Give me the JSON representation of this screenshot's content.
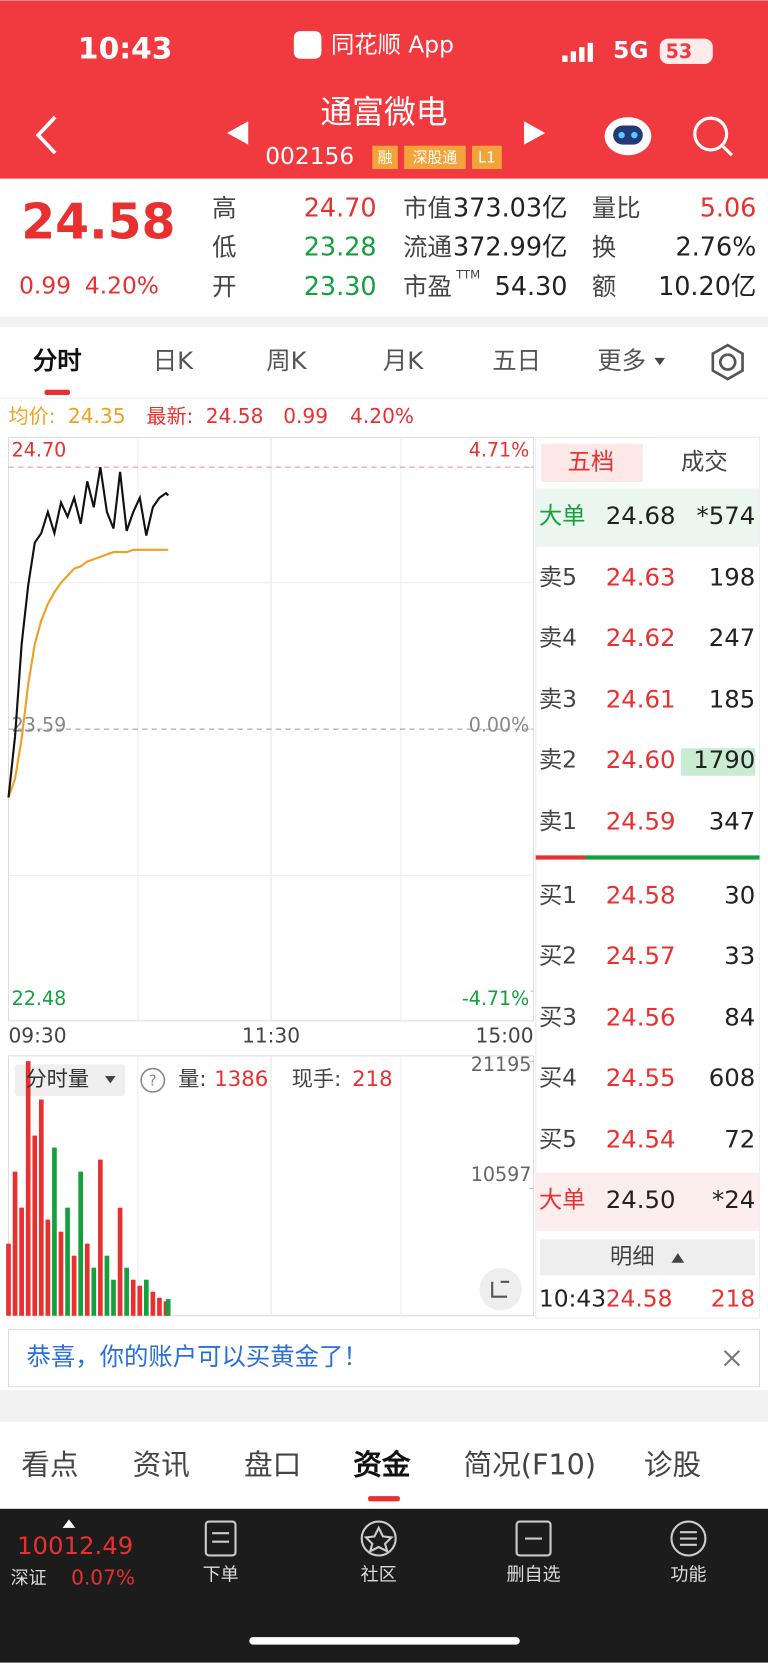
{
  "status": {
    "time": "10:43",
    "app": "同花顺 App",
    "network": "5G",
    "battery": "53"
  },
  "header": {
    "name": "通富微电",
    "code": "002156",
    "tags": [
      "融",
      "深股通",
      "L1"
    ]
  },
  "quote": {
    "price": "24.58",
    "change": "0.99",
    "percent": "4.20%",
    "stats": [
      [
        {
          "label": "高",
          "value": "24.70",
          "color": "#e93030"
        },
        {
          "label": "低",
          "value": "23.28",
          "color": "#14a03c"
        },
        {
          "label": "开",
          "value": "23.30",
          "color": "#14a03c"
        }
      ],
      [
        {
          "label": "市值",
          "value": "373.03亿",
          "color": "#222222"
        },
        {
          "label": "流通",
          "value": "372.99亿",
          "color": "#222222"
        },
        {
          "label": "市盈",
          "sup": "TTM",
          "value": "54.30",
          "color": "#222222"
        }
      ],
      [
        {
          "label": "量比",
          "value": "5.06",
          "color": "#e93030"
        },
        {
          "label": "换",
          "value": "2.76%",
          "color": "#222222"
        },
        {
          "label": "额",
          "value": "10.20亿",
          "color": "#222222"
        }
      ]
    ]
  },
  "tabs": [
    "分时",
    "日K",
    "周K",
    "月K",
    "五日",
    "更多"
  ],
  "info_line": {
    "avg_label": "均价:",
    "avg": "24.35",
    "last_label": "最新:",
    "last": "24.58",
    "change": "0.99",
    "percent": "4.20%"
  },
  "intraday": {
    "x": [
      "09:30",
      "09:33",
      "09:36",
      "09:39",
      "09:42",
      "09:45",
      "09:48",
      "09:51",
      "09:54",
      "09:57",
      "10:00",
      "10:03",
      "10:06",
      "10:09",
      "10:12",
      "10:15",
      "10:18",
      "10:21",
      "10:24",
      "10:27",
      "10:30",
      "10:33",
      "10:36",
      "10:39",
      "10:42",
      "10:43"
    ],
    "price": [
      23.3,
      23.56,
      23.95,
      24.2,
      24.38,
      24.42,
      24.51,
      24.42,
      24.55,
      24.49,
      24.57,
      24.46,
      24.64,
      24.53,
      24.7,
      24.51,
      24.44,
      24.68,
      24.43,
      24.51,
      24.57,
      24.41,
      24.53,
      24.57,
      24.59,
      24.58
    ],
    "avg": [
      23.3,
      23.38,
      23.55,
      23.78,
      23.95,
      24.05,
      24.12,
      24.17,
      24.21,
      24.24,
      24.27,
      24.28,
      24.3,
      24.31,
      24.32,
      24.33,
      24.34,
      24.34,
      24.34,
      24.35,
      24.35,
      24.35,
      24.35,
      24.35,
      24.35,
      24.35
    ],
    "volume": [
      6000,
      12000,
      9000,
      21195,
      15000,
      18000,
      8000,
      14000,
      7000,
      9000,
      5000,
      12000,
      6000,
      4000,
      13000,
      5000,
      3000,
      9000,
      4000,
      3000,
      2500,
      3000,
      2000,
      1500,
      1200,
      1386
    ],
    "ylim": [
      22.48,
      24.7
    ],
    "yticks": [
      {
        "value": 24.7,
        "label": "24.70"
      },
      {
        "value": 23.59,
        "label": "23.59"
      },
      {
        "value": 22.48,
        "label": "22.48"
      }
    ],
    "y_right_ticks": [
      {
        "value": 24.7,
        "label": "4.71%"
      },
      {
        "value": 23.59,
        "label": "0.00%"
      },
      {
        "value": 22.48,
        "label": "-4.71%"
      }
    ],
    "xticks": [
      "09:30",
      "11:30",
      "15:00"
    ],
    "volume_ylim": [
      0,
      21195
    ],
    "volume_yticks": [
      21195,
      10597
    ],
    "price_color": "#111111",
    "avg_color": "#f0a020",
    "up_color": "#e93030",
    "down_color": "#14a03c"
  },
  "volume_header": {
    "title": "分时量",
    "volume_label": "量:",
    "volume": "1386",
    "hand_label": "现手:",
    "hand": "218"
  },
  "order_book": {
    "tabs": [
      "五档",
      "成交"
    ],
    "big_sell": {
      "label": "大单",
      "price": "24.68",
      "volume": "*574"
    },
    "asks": [
      {
        "label": "卖5",
        "price": "24.63",
        "volume": "198"
      },
      {
        "label": "卖4",
        "price": "24.62",
        "volume": "247"
      },
      {
        "label": "卖3",
        "price": "24.61",
        "volume": "185"
      },
      {
        "label": "卖2",
        "price": "24.60",
        "volume": "1790"
      },
      {
        "label": "卖1",
        "price": "24.59",
        "volume": "347"
      }
    ],
    "bids": [
      {
        "label": "买1",
        "price": "24.58",
        "volume": "30"
      },
      {
        "label": "买2",
        "price": "24.57",
        "volume": "33"
      },
      {
        "label": "买3",
        "price": "24.56",
        "volume": "84"
      },
      {
        "label": "买4",
        "price": "24.55",
        "volume": "608"
      },
      {
        "label": "买5",
        "price": "24.54",
        "volume": "72"
      }
    ],
    "big_buy": {
      "label": "大单",
      "price": "24.50",
      "volume": "*24"
    },
    "detail": "明细",
    "last_trade": {
      "time": "10:43",
      "price": "24.58",
      "volume": "218"
    }
  },
  "banner": "恭喜，你的账户可以买黄金了！",
  "bottom_tabs": [
    "看点",
    "资讯",
    "盘口",
    "资金",
    "简况(F10)",
    "诊股"
  ],
  "index": {
    "value": "10012.49",
    "name": "深证",
    "percent": "0.07%"
  },
  "nav": [
    "下单",
    "社区",
    "删自选",
    "功能"
  ]
}
